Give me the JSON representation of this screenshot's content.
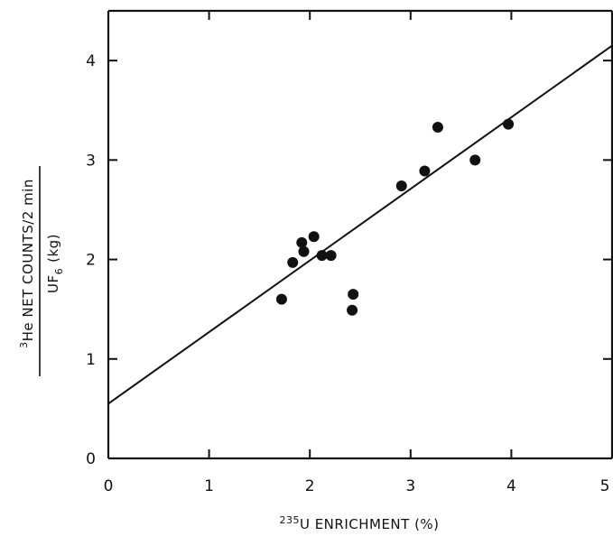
{
  "chart_data": {
    "type": "scatter",
    "xlabel": {
      "superscript": "235",
      "text": "U ENRICHMENT (%)"
    },
    "ylabel": {
      "numerator_superscript": "3",
      "numerator": "He NET COUNTS/2 min",
      "denominator": "UF",
      "denominator_subscript": "6",
      "denominator_unit": "(kg)"
    },
    "xlim": [
      0,
      5
    ],
    "ylim": [
      0,
      4.5
    ],
    "x_ticks": [
      0,
      1,
      2,
      3,
      4,
      5
    ],
    "x_tick_labels": [
      "0",
      "1",
      "2",
      "3",
      "4",
      "5"
    ],
    "y_ticks": [
      0,
      1,
      2,
      3,
      4
    ],
    "y_tick_labels": [
      "0",
      "1",
      "2",
      "3",
      "4"
    ],
    "grid": false,
    "legend": "none",
    "series": [
      {
        "points": [
          {
            "x": 1.72,
            "y": 1.6
          },
          {
            "x": 1.83,
            "y": 1.97
          },
          {
            "x": 1.92,
            "y": 2.17
          },
          {
            "x": 1.94,
            "y": 2.08
          },
          {
            "x": 2.04,
            "y": 2.23
          },
          {
            "x": 2.12,
            "y": 2.04
          },
          {
            "x": 2.21,
            "y": 2.04
          },
          {
            "x": 2.42,
            "y": 1.49
          },
          {
            "x": 2.43,
            "y": 1.65
          },
          {
            "x": 2.91,
            "y": 2.74
          },
          {
            "x": 3.14,
            "y": 2.89
          },
          {
            "x": 3.27,
            "y": 3.33
          },
          {
            "x": 3.64,
            "y": 3.0
          },
          {
            "x": 3.97,
            "y": 3.36
          }
        ]
      }
    ],
    "fit_line": {
      "x": [
        0,
        5
      ],
      "y": [
        0.55,
        4.15
      ]
    },
    "colors": {
      "marks": "#111111",
      "background": "#ffffff"
    }
  }
}
